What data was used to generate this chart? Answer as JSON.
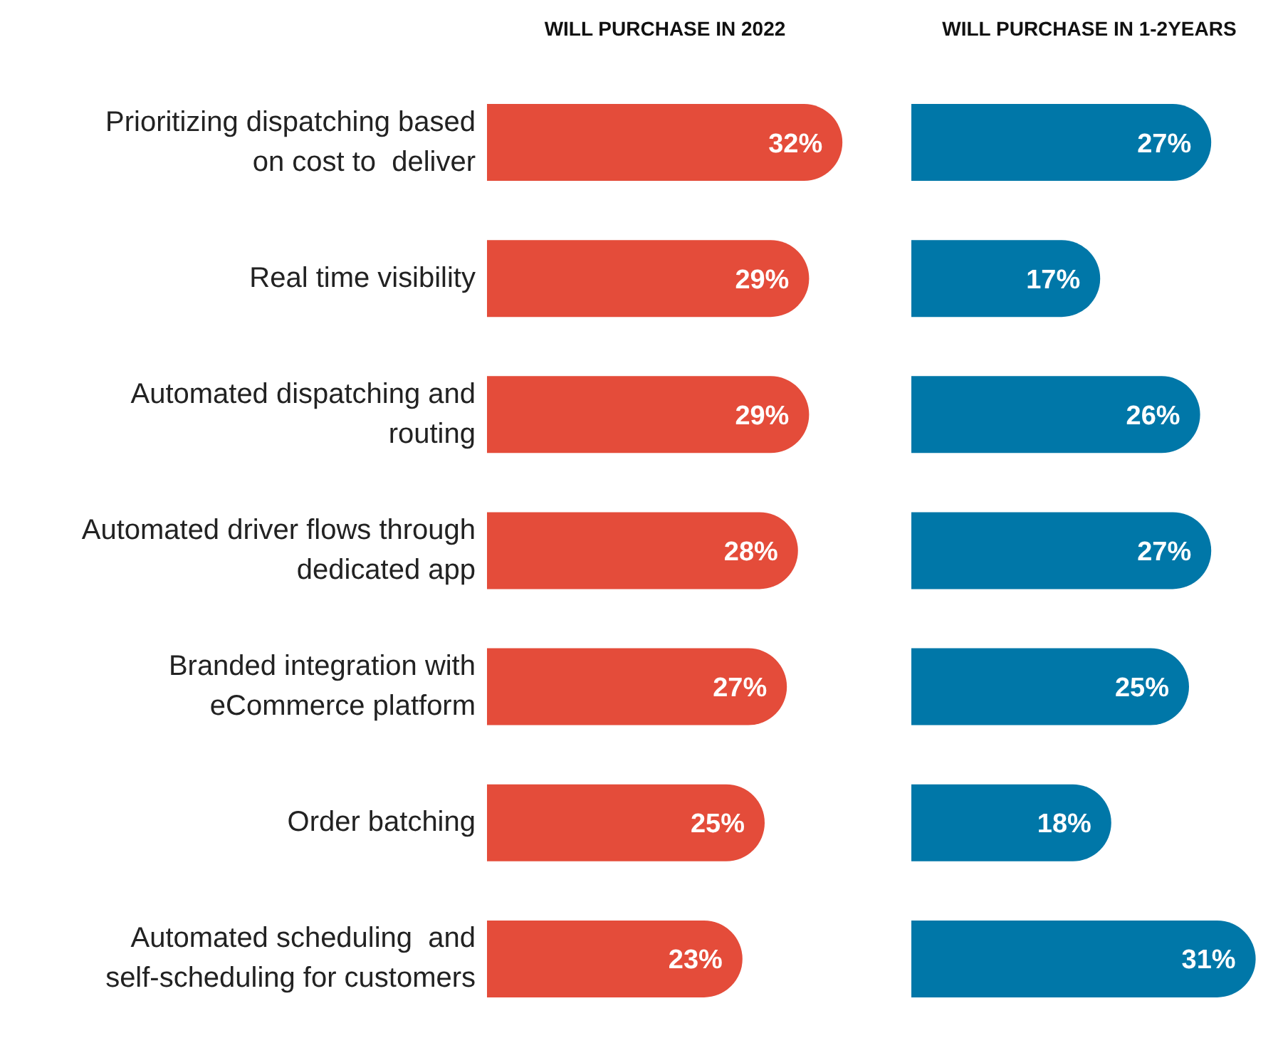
{
  "chart_data": [
    {
      "type": "bar",
      "orientation": "horizontal",
      "title": "WILL PURCHASE IN 2022",
      "categories": [
        "Prioritizing dispatching based on cost to  deliver",
        "Real time visibility",
        "Automated dispatching and routing",
        "Automated driver flows through dedicated app",
        "Branded integration with eCommerce platform",
        "Order batching",
        "Automated scheduling  and self-scheduling for customers"
      ],
      "values": [
        32,
        29,
        29,
        28,
        27,
        25,
        23
      ],
      "value_labels": [
        "32%",
        "29%",
        "29%",
        "28%",
        "27%",
        "25%",
        "23%"
      ],
      "color": "#e44c3a"
    },
    {
      "type": "bar",
      "orientation": "horizontal",
      "title": "WILL PURCHASE IN 1-2YEARS",
      "values": [
        27,
        17,
        26,
        27,
        25,
        18,
        31
      ],
      "value_labels": [
        "27%",
        "17%",
        "26%",
        "27%",
        "25%",
        "18%",
        "31%"
      ],
      "color": "#0077a8",
      "tick_labels": false
    }
  ]
}
